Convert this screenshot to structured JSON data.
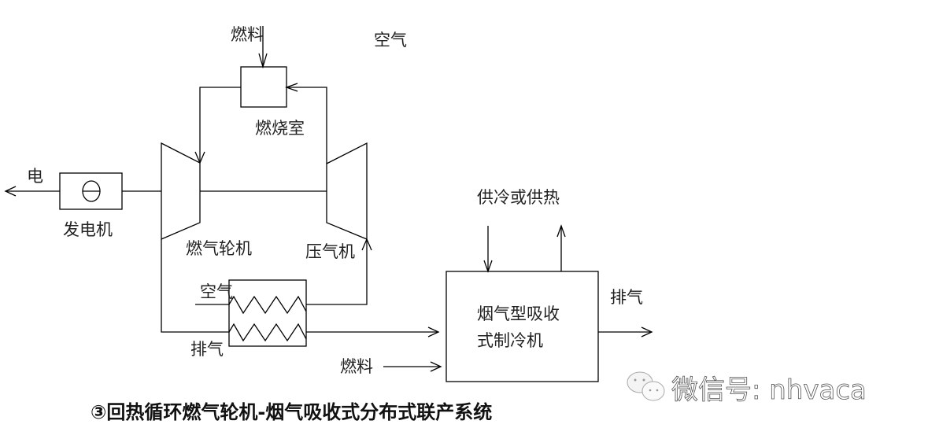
{
  "labels": {
    "fuel_top": "燃料",
    "air_top": "空气",
    "combustor": "燃烧室",
    "electricity": "电",
    "generator": "发电机",
    "gas_turbine": "燃气轮机",
    "compressor": "压气机",
    "air_in": "空气",
    "exhaust_left": "排气",
    "fuel_bottom": "燃料",
    "cooling_heating": "供冷或供热",
    "exhaust_right": "排气",
    "chiller_line1": "烟气型吸收",
    "chiller_line2": "式制冷机"
  },
  "title": "③回热循环燃气轮机-烟气吸收式分布式联产系统",
  "watermark": {
    "text": "微信号: nhvaca",
    "icon": "wechat-icon"
  }
}
